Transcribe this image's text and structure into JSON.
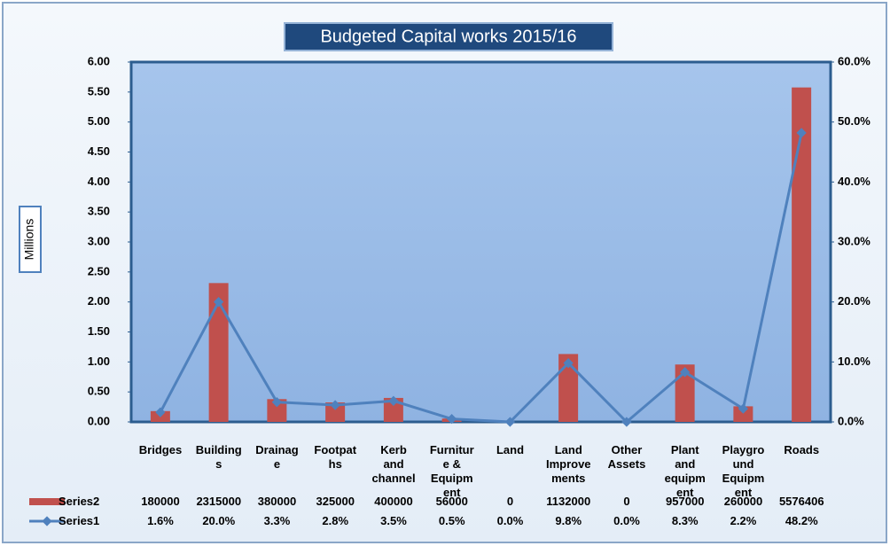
{
  "chart_data": {
    "type": "bar",
    "title": "Budgeted Capital works 2015/16",
    "y_label": "Millions",
    "categories": [
      "Bridges",
      "Building\ns",
      "Drainag\ne",
      "Footpat\nhs",
      "Kerb\nand\nchannel",
      "Furnitur\ne &\nEquipm\nent",
      "Land",
      "Land\nImprove\nments",
      "Other\nAssets",
      "Plant\nand\nequipm\nent",
      "Playgro\nund\nEquipm\nent",
      "Roads"
    ],
    "series": [
      {
        "name": "Series2",
        "type": "bar",
        "color": "#c0504d",
        "values": [
          0.18,
          2.315,
          0.38,
          0.325,
          0.4,
          0.056,
          0,
          1.132,
          0,
          0.957,
          0.26,
          5.576406
        ],
        "value_labels": [
          "180000",
          "2315000",
          "380000",
          "325000",
          "400000",
          "56000",
          "0",
          "1132000",
          "0",
          "957000",
          "260000",
          "5576406"
        ]
      },
      {
        "name": "Series1",
        "type": "line",
        "axis": "y2",
        "color": "#4f81bd",
        "values": [
          1.6,
          20.0,
          3.3,
          2.8,
          3.5,
          0.5,
          0.0,
          9.8,
          0.0,
          8.3,
          2.2,
          48.2
        ],
        "value_labels": [
          "1.6%",
          "20.0%",
          "3.3%",
          "2.8%",
          "3.5%",
          "0.5%",
          "0.0%",
          "9.8%",
          "0.0%",
          "8.3%",
          "2.2%",
          "48.2%"
        ]
      }
    ],
    "ylim": [
      0,
      6
    ],
    "yticks": [
      {
        "value": 0,
        "label": "0.00"
      },
      {
        "value": 0.5,
        "label": "0.50"
      },
      {
        "value": 1,
        "label": "1.00"
      },
      {
        "value": 1.5,
        "label": "1.50"
      },
      {
        "value": 2,
        "label": "2.00"
      },
      {
        "value": 2.5,
        "label": "2.50"
      },
      {
        "value": 3,
        "label": "3.00"
      },
      {
        "value": 3.5,
        "label": "3.50"
      },
      {
        "value": 4,
        "label": "4.00"
      },
      {
        "value": 4.5,
        "label": "4.50"
      },
      {
        "value": 5,
        "label": "5.00"
      },
      {
        "value": 5.5,
        "label": "5.50"
      },
      {
        "value": 6,
        "label": "6.00"
      }
    ],
    "y2lim": [
      0,
      60
    ],
    "y2ticks": [
      {
        "value": 0,
        "label": "0.0%"
      },
      {
        "value": 10,
        "label": "10.0%"
      },
      {
        "value": 20,
        "label": "20.0%"
      },
      {
        "value": 30,
        "label": "30.0%"
      },
      {
        "value": 40,
        "label": "40.0%"
      },
      {
        "value": 50,
        "label": "50.0%"
      },
      {
        "value": 60,
        "label": "60.0%"
      }
    ],
    "grid": false
  }
}
